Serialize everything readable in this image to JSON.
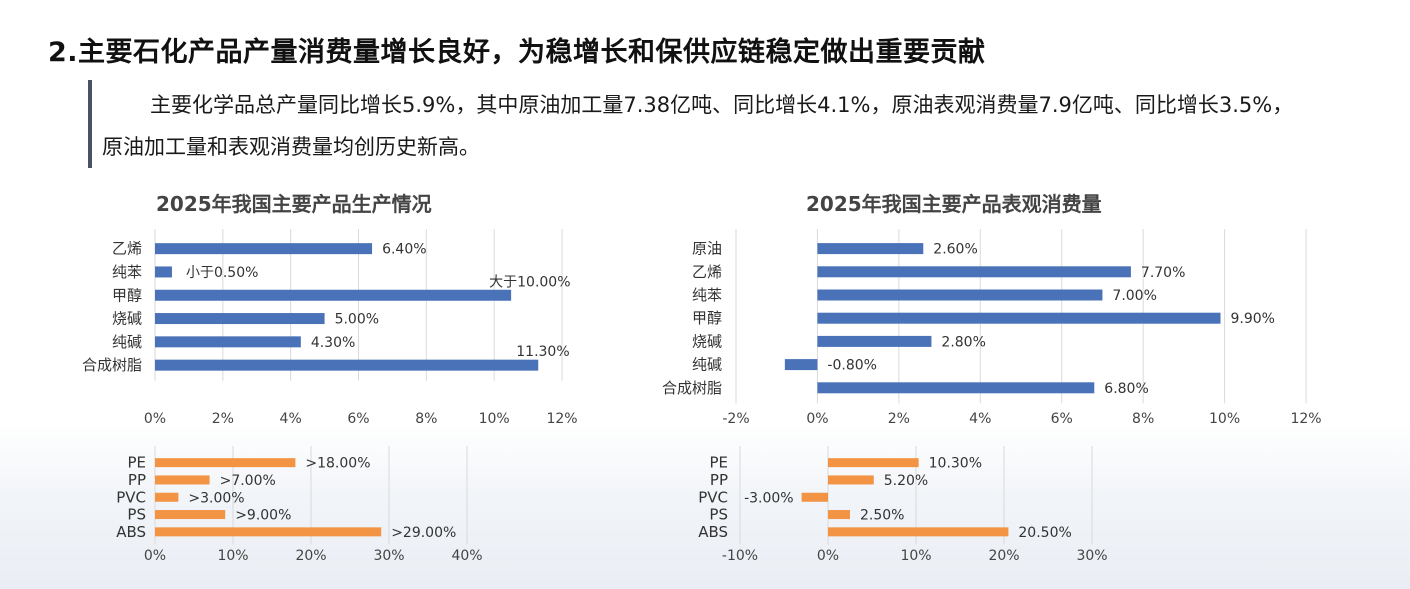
{
  "title": "2.主要石化产品产量消费量增长良好，为稳增长和保供应链稳定做出重要贡献",
  "intro": "主要化学品总产量同比增长5.9%，其中原油加工量7.38亿吨、同比增长4.1%，原油表观消费量7.9亿吨、同比增长3.5%，原油加工量和表观消费量均创历史新高。",
  "colors": {
    "blue": "#4a72b8",
    "orange": "#f29444"
  },
  "chart_data": [
    {
      "id": "production-main",
      "type": "bar",
      "orientation": "horizontal",
      "title": "2025年我国主要产品生产情况",
      "categories": [
        "乙烯",
        "纯苯",
        "甲醇",
        "烧碱",
        "纯碱",
        "合成树脂"
      ],
      "values": [
        6.4,
        0.5,
        10.5,
        5.0,
        4.3,
        11.3
      ],
      "labels": [
        "6.40%",
        "小于0.50%",
        "大于10.00%",
        "5.00%",
        "4.30%",
        "11.30%"
      ],
      "xlim": [
        0,
        12
      ],
      "ticks": [
        0,
        2,
        4,
        6,
        8,
        10,
        12
      ],
      "tick_labels": [
        "0%",
        "2%",
        "4%",
        "6%",
        "8%",
        "10%",
        "12%"
      ],
      "color": "#4a72b8"
    },
    {
      "id": "production-resins",
      "type": "bar",
      "orientation": "horizontal",
      "title": "",
      "categories": [
        "PE",
        "PP",
        "PVC",
        "PS",
        "ABS"
      ],
      "values": [
        18,
        7,
        3,
        9,
        29
      ],
      "labels": [
        ">18.00%",
        ">7.00%",
        ">3.00%",
        ">9.00%",
        ">29.00%"
      ],
      "xlim": [
        0,
        40
      ],
      "ticks": [
        0,
        10,
        20,
        30,
        40
      ],
      "tick_labels": [
        "0%",
        "10%",
        "20%",
        "30%",
        "40%"
      ],
      "color": "#f29444"
    },
    {
      "id": "consumption-main",
      "type": "bar",
      "orientation": "horizontal",
      "title": "2025年我国主要产品表观消费量",
      "categories": [
        "原油",
        "乙烯",
        "纯苯",
        "甲醇",
        "烧碱",
        "纯碱",
        "合成树脂"
      ],
      "values": [
        2.6,
        7.7,
        7.0,
        9.9,
        2.8,
        -0.8,
        6.8
      ],
      "labels": [
        "2.60%",
        "7.70%",
        "7.00%",
        "9.90%",
        "2.80%",
        "-0.80%",
        "6.80%"
      ],
      "xlim": [
        -2,
        12
      ],
      "ticks": [
        -2,
        0,
        2,
        4,
        6,
        8,
        10,
        12
      ],
      "tick_labels": [
        "-2%",
        "0%",
        "2%",
        "4%",
        "6%",
        "8%",
        "10%",
        "12%"
      ],
      "color": "#4a72b8"
    },
    {
      "id": "consumption-resins",
      "type": "bar",
      "orientation": "horizontal",
      "title": "",
      "categories": [
        "PE",
        "PP",
        "PVC",
        "PS",
        "ABS"
      ],
      "values": [
        10.3,
        5.2,
        -3.0,
        2.5,
        20.5
      ],
      "labels": [
        "10.30%",
        "5.20%",
        "-3.00%",
        "2.50%",
        "20.50%"
      ],
      "xlim": [
        -10,
        30
      ],
      "ticks": [
        -10,
        0,
        10,
        20,
        30
      ],
      "tick_labels": [
        "-10%",
        "0%",
        "10%",
        "20%",
        "30%"
      ],
      "color": "#f29444"
    }
  ]
}
